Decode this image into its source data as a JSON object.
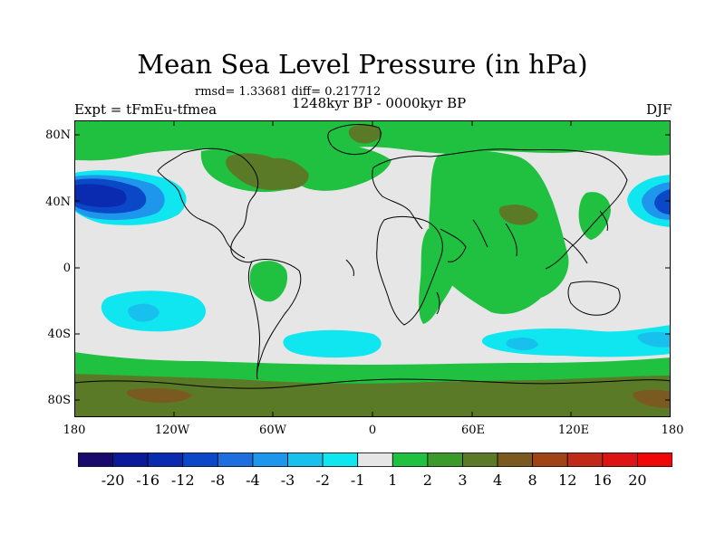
{
  "title": "Mean Sea Level Pressure (in hPa)",
  "stats": "rmsd= 1.33681 diff= 0.217712",
  "period": "1248kyr BP - 0000kyr BP",
  "experiment": "Expt = tFmEu-tfmea",
  "season": "DJF",
  "lat_labels": [
    "80N",
    "40N",
    "0",
    "40S",
    "80S"
  ],
  "lon_labels": [
    "180",
    "120W",
    "60W",
    "0",
    "60E",
    "120E",
    "180"
  ],
  "colorbar": {
    "labels": [
      "-20",
      "-16",
      "-12",
      "-8",
      "-4",
      "-3",
      "-2",
      "-1",
      "1",
      "2",
      "3",
      "4",
      "8",
      "12",
      "16",
      "20"
    ],
    "colors": [
      "#1a0a6e",
      "#0a1a9a",
      "#0a2ab0",
      "#0a48c8",
      "#1e6ee0",
      "#1e96ec",
      "#18c0ee",
      "#10e6f0",
      "#e6e6e6",
      "#20c040",
      "#3c9a2a",
      "#5a7a28",
      "#7a5a20",
      "#a04418",
      "#c02a18",
      "#dc1414",
      "#f00808"
    ]
  },
  "colors": {
    "land_outline": "#000000",
    "neutral": "#e6e6e6"
  }
}
